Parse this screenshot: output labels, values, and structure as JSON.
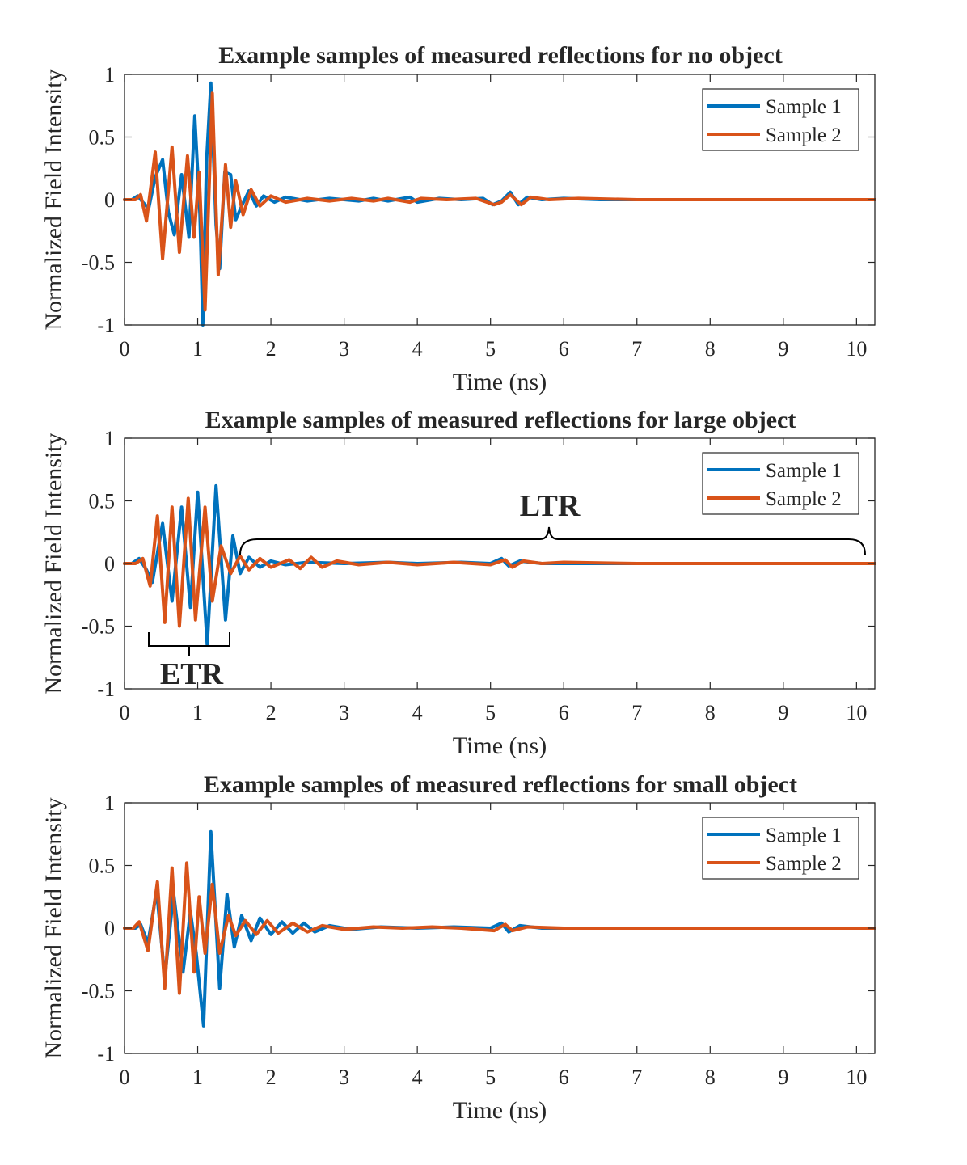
{
  "chart_data": [
    {
      "type": "line",
      "title": "Example samples of measured reflections for no object",
      "xlabel": "Time (ns)",
      "ylabel": "Normalized Field Intensity",
      "xlim": [
        0,
        10.25
      ],
      "ylim": [
        -1,
        1
      ],
      "xticks": [
        0,
        1,
        2,
        3,
        4,
        5,
        6,
        7,
        8,
        9,
        10
      ],
      "yticks": [
        -1,
        -0.5,
        0,
        0.5,
        1
      ],
      "ytick_labels": [
        "-1",
        "-0.5",
        "0",
        "0.5",
        "1"
      ],
      "grid": false,
      "legend_position": "top-right",
      "series": [
        {
          "name": "Sample 1",
          "color": "#0072BD",
          "points": [
            [
              0,
              0
            ],
            [
              0.1,
              0
            ],
            [
              0.18,
              0.03
            ],
            [
              0.25,
              -0.02
            ],
            [
              0.33,
              -0.07
            ],
            [
              0.42,
              0.18
            ],
            [
              0.52,
              0.32
            ],
            [
              0.6,
              -0.1
            ],
            [
              0.68,
              -0.28
            ],
            [
              0.78,
              0.2
            ],
            [
              0.88,
              -0.3
            ],
            [
              0.96,
              0.67
            ],
            [
              1.03,
              -0.12
            ],
            [
              1.07,
              -1
            ],
            [
              1.12,
              0.3
            ],
            [
              1.18,
              0.93
            ],
            [
              1.25,
              -0.2
            ],
            [
              1.3,
              -0.55
            ],
            [
              1.37,
              0.22
            ],
            [
              1.45,
              0.2
            ],
            [
              1.52,
              -0.16
            ],
            [
              1.6,
              -0.05
            ],
            [
              1.7,
              0.07
            ],
            [
              1.8,
              -0.05
            ],
            [
              1.9,
              0.03
            ],
            [
              2.05,
              -0.02
            ],
            [
              2.2,
              0.02
            ],
            [
              2.5,
              -0.01
            ],
            [
              2.8,
              0.01
            ],
            [
              3.2,
              -0.01
            ],
            [
              3.4,
              0.01
            ],
            [
              3.6,
              -0.01
            ],
            [
              3.9,
              0.02
            ],
            [
              4.0,
              -0.02
            ],
            [
              4.3,
              0.01
            ],
            [
              4.6,
              0
            ],
            [
              4.9,
              0.01
            ],
            [
              5.03,
              -0.04
            ],
            [
              5.15,
              -0.01
            ],
            [
              5.27,
              0.06
            ],
            [
              5.38,
              -0.04
            ],
            [
              5.5,
              0.02
            ],
            [
              5.7,
              0
            ],
            [
              6.0,
              0.01
            ],
            [
              6.5,
              0
            ],
            [
              7.5,
              0
            ],
            [
              10.25,
              0
            ]
          ]
        },
        {
          "name": "Sample 2",
          "color": "#D95319",
          "points": [
            [
              0,
              0
            ],
            [
              0.15,
              0
            ],
            [
              0.22,
              0.04
            ],
            [
              0.3,
              -0.17
            ],
            [
              0.42,
              0.38
            ],
            [
              0.52,
              -0.47
            ],
            [
              0.65,
              0.42
            ],
            [
              0.75,
              -0.42
            ],
            [
              0.86,
              0.35
            ],
            [
              0.95,
              -0.3
            ],
            [
              1.02,
              0.22
            ],
            [
              1.1,
              -0.88
            ],
            [
              1.2,
              0.85
            ],
            [
              1.28,
              -0.6
            ],
            [
              1.38,
              0.28
            ],
            [
              1.45,
              -0.22
            ],
            [
              1.52,
              0.15
            ],
            [
              1.62,
              -0.12
            ],
            [
              1.73,
              0.08
            ],
            [
              1.85,
              -0.05
            ],
            [
              2.0,
              0.03
            ],
            [
              2.2,
              -0.02
            ],
            [
              2.5,
              0.01
            ],
            [
              2.8,
              -0.01
            ],
            [
              3.1,
              0.01
            ],
            [
              3.4,
              -0.01
            ],
            [
              3.6,
              0.01
            ],
            [
              3.9,
              -0.02
            ],
            [
              4.05,
              0.01
            ],
            [
              4.4,
              0
            ],
            [
              4.8,
              0.01
            ],
            [
              5.05,
              -0.04
            ],
            [
              5.15,
              -0.02
            ],
            [
              5.27,
              0.04
            ],
            [
              5.42,
              -0.04
            ],
            [
              5.55,
              0.02
            ],
            [
              5.8,
              0
            ],
            [
              6.2,
              0.01
            ],
            [
              7.0,
              0
            ],
            [
              10.25,
              0
            ]
          ]
        }
      ]
    },
    {
      "type": "line",
      "title": "Example samples of measured reflections for large object",
      "xlabel": "Time (ns)",
      "ylabel": "Normalized Field Intensity",
      "xlim": [
        0,
        10.25
      ],
      "ylim": [
        -1,
        1
      ],
      "xticks": [
        0,
        1,
        2,
        3,
        4,
        5,
        6,
        7,
        8,
        9,
        10
      ],
      "yticks": [
        -1,
        -0.5,
        0,
        0.5,
        1
      ],
      "ytick_labels": [
        "-1",
        "-0.5",
        "0",
        "0.5",
        "1"
      ],
      "grid": false,
      "legend_position": "top-right",
      "annotations": [
        {
          "label": "ETR",
          "x_start": 0.33,
          "x_end": 1.43,
          "y": -0.67,
          "side": "below"
        },
        {
          "label": "LTR",
          "x_start": 1.6,
          "x_end": 10.15,
          "y": 0.2,
          "side": "above"
        }
      ],
      "series": [
        {
          "name": "Sample 1",
          "color": "#0072BD",
          "points": [
            [
              0,
              0
            ],
            [
              0.1,
              0
            ],
            [
              0.2,
              0.04
            ],
            [
              0.3,
              -0.05
            ],
            [
              0.38,
              -0.15
            ],
            [
              0.52,
              0.32
            ],
            [
              0.65,
              -0.3
            ],
            [
              0.78,
              0.45
            ],
            [
              0.9,
              -0.35
            ],
            [
              1.0,
              0.57
            ],
            [
              1.13,
              -0.65
            ],
            [
              1.25,
              0.62
            ],
            [
              1.38,
              -0.45
            ],
            [
              1.48,
              0.22
            ],
            [
              1.58,
              -0.08
            ],
            [
              1.7,
              0.05
            ],
            [
              1.85,
              -0.03
            ],
            [
              2.0,
              0.02
            ],
            [
              2.2,
              -0.01
            ],
            [
              2.5,
              0.01
            ],
            [
              3.0,
              0
            ],
            [
              3.6,
              0.01
            ],
            [
              4.0,
              0
            ],
            [
              4.6,
              0.01
            ],
            [
              5.0,
              0
            ],
            [
              5.15,
              0.04
            ],
            [
              5.25,
              -0.02
            ],
            [
              5.4,
              0.02
            ],
            [
              5.7,
              0
            ],
            [
              10.25,
              0
            ]
          ]
        },
        {
          "name": "Sample 2",
          "color": "#D95319",
          "points": [
            [
              0,
              0
            ],
            [
              0.15,
              0
            ],
            [
              0.25,
              0.04
            ],
            [
              0.35,
              -0.18
            ],
            [
              0.45,
              0.38
            ],
            [
              0.55,
              -0.47
            ],
            [
              0.65,
              0.45
            ],
            [
              0.75,
              -0.5
            ],
            [
              0.87,
              0.52
            ],
            [
              0.97,
              -0.45
            ],
            [
              1.1,
              0.45
            ],
            [
              1.2,
              -0.3
            ],
            [
              1.32,
              0.14
            ],
            [
              1.45,
              -0.08
            ],
            [
              1.58,
              0.06
            ],
            [
              1.7,
              -0.05
            ],
            [
              1.85,
              0.04
            ],
            [
              2.0,
              -0.03
            ],
            [
              2.25,
              0.03
            ],
            [
              2.4,
              -0.04
            ],
            [
              2.55,
              0.05
            ],
            [
              2.7,
              -0.03
            ],
            [
              2.9,
              0.02
            ],
            [
              3.2,
              -0.01
            ],
            [
              3.6,
              0.01
            ],
            [
              4.0,
              -0.01
            ],
            [
              4.5,
              0.01
            ],
            [
              5.0,
              -0.01
            ],
            [
              5.2,
              0.03
            ],
            [
              5.3,
              -0.03
            ],
            [
              5.45,
              0.02
            ],
            [
              5.7,
              0
            ],
            [
              6.0,
              0.01
            ],
            [
              7.0,
              0
            ],
            [
              10.25,
              0
            ]
          ]
        }
      ]
    },
    {
      "type": "line",
      "title": "Example samples of measured reflections for small object",
      "xlabel": "Time (ns)",
      "ylabel": "Normalized Field Intensity",
      "xlim": [
        0,
        10.25
      ],
      "ylim": [
        -1,
        1
      ],
      "xticks": [
        0,
        1,
        2,
        3,
        4,
        5,
        6,
        7,
        8,
        9,
        10
      ],
      "yticks": [
        -1,
        -0.5,
        0,
        0.5,
        1
      ],
      "ytick_labels": [
        "-1",
        "-0.5",
        "0",
        "0.5",
        "1"
      ],
      "grid": false,
      "legend_position": "top-right",
      "series": [
        {
          "name": "Sample 1",
          "color": "#0072BD",
          "points": [
            [
              0,
              0
            ],
            [
              0.15,
              0
            ],
            [
              0.22,
              0.03
            ],
            [
              0.32,
              -0.12
            ],
            [
              0.44,
              0.3
            ],
            [
              0.55,
              -0.4
            ],
            [
              0.67,
              0.28
            ],
            [
              0.8,
              -0.35
            ],
            [
              0.9,
              0.13
            ],
            [
              0.98,
              -0.2
            ],
            [
              1.08,
              -0.78
            ],
            [
              1.18,
              0.77
            ],
            [
              1.3,
              -0.48
            ],
            [
              1.4,
              0.27
            ],
            [
              1.5,
              -0.15
            ],
            [
              1.6,
              0.1
            ],
            [
              1.73,
              -0.1
            ],
            [
              1.85,
              0.08
            ],
            [
              2.0,
              -0.05
            ],
            [
              2.15,
              0.05
            ],
            [
              2.3,
              -0.04
            ],
            [
              2.45,
              0.04
            ],
            [
              2.6,
              -0.03
            ],
            [
              2.8,
              0.02
            ],
            [
              3.1,
              -0.01
            ],
            [
              3.5,
              0.01
            ],
            [
              4.0,
              0
            ],
            [
              4.5,
              0.01
            ],
            [
              5.0,
              0
            ],
            [
              5.15,
              0.04
            ],
            [
              5.25,
              -0.03
            ],
            [
              5.4,
              0.02
            ],
            [
              5.7,
              0
            ],
            [
              10.25,
              0
            ]
          ]
        },
        {
          "name": "Sample 2",
          "color": "#D95319",
          "points": [
            [
              0,
              0
            ],
            [
              0.12,
              0
            ],
            [
              0.2,
              0.05
            ],
            [
              0.32,
              -0.18
            ],
            [
              0.45,
              0.37
            ],
            [
              0.55,
              -0.48
            ],
            [
              0.65,
              0.48
            ],
            [
              0.75,
              -0.52
            ],
            [
              0.85,
              0.52
            ],
            [
              0.95,
              -0.35
            ],
            [
              1.02,
              0.25
            ],
            [
              1.1,
              -0.2
            ],
            [
              1.2,
              0.35
            ],
            [
              1.3,
              -0.2
            ],
            [
              1.42,
              0.1
            ],
            [
              1.52,
              -0.06
            ],
            [
              1.65,
              0.06
            ],
            [
              1.8,
              -0.05
            ],
            [
              1.95,
              0.06
            ],
            [
              2.1,
              -0.04
            ],
            [
              2.3,
              0.04
            ],
            [
              2.5,
              -0.03
            ],
            [
              2.7,
              0.02
            ],
            [
              3.0,
              -0.01
            ],
            [
              3.4,
              0.01
            ],
            [
              3.8,
              0
            ],
            [
              4.2,
              0.01
            ],
            [
              4.6,
              0
            ],
            [
              5.05,
              -0.02
            ],
            [
              5.2,
              0.03
            ],
            [
              5.3,
              -0.02
            ],
            [
              5.5,
              0.01
            ],
            [
              6.0,
              0
            ],
            [
              10.25,
              0
            ]
          ]
        }
      ]
    }
  ]
}
